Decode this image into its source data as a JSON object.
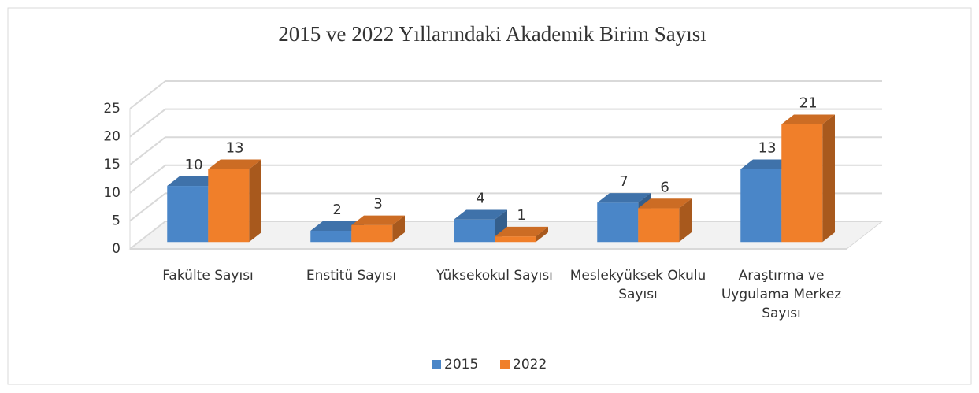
{
  "chart_data": {
    "type": "bar3d",
    "title": "2015 ve 2022 Yıllarındaki Akademik Birim Sayısı",
    "categories": [
      "Fakülte Sayısı",
      "Enstitü Sayısı",
      "Yüksekokul Sayısı",
      "Meslekyüksek Okulu  Sayısı",
      "Araştırma ve Uygulama Merkez Sayısı"
    ],
    "series": [
      {
        "name": "2015",
        "color": "#4a86c8",
        "values": [
          10,
          2,
          4,
          7,
          13
        ]
      },
      {
        "name": "2022",
        "color": "#f07f2a",
        "values": [
          13,
          3,
          1,
          6,
          21
        ]
      }
    ],
    "ylim": [
      0,
      25
    ],
    "yticks": [
      0,
      5,
      10,
      15,
      20,
      25
    ],
    "grid": true,
    "legend": "bottom"
  }
}
